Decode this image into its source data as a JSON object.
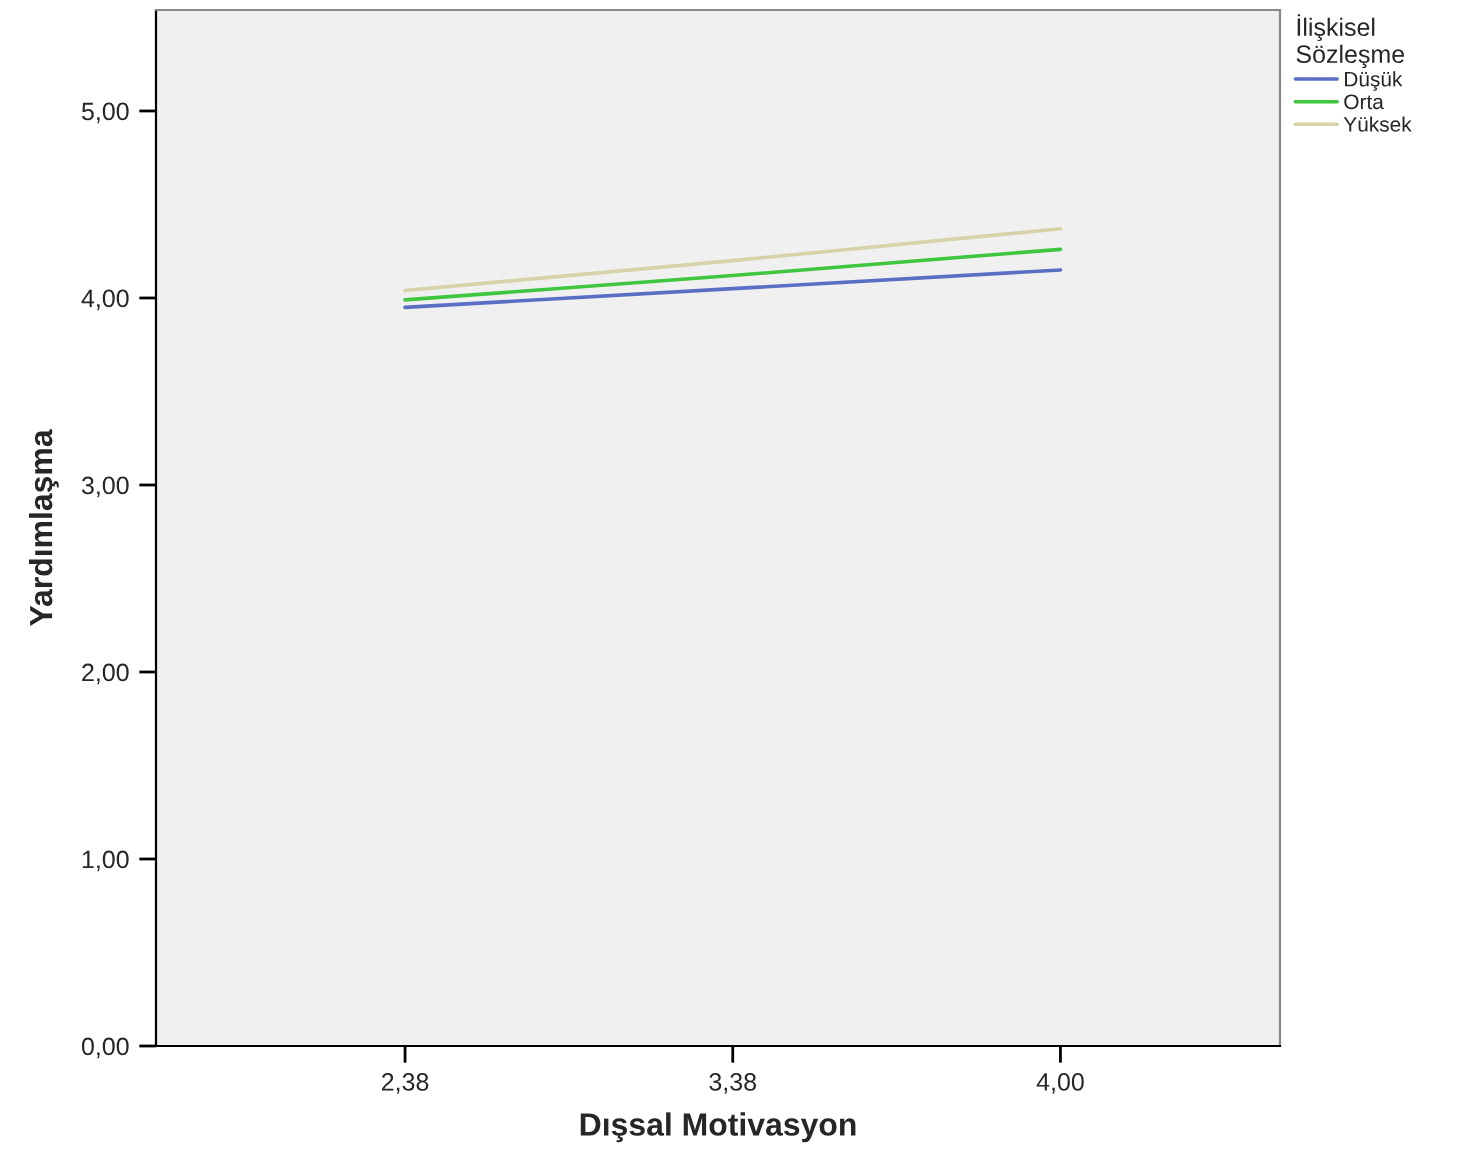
{
  "chart_data": {
    "type": "line",
    "xlabel": "Dışsal Motivasyon",
    "ylabel": "Yardımlaşma",
    "legend_title": "İlişkisel\nSözleşme",
    "categories": [
      "2,38",
      "3,38",
      "4,00"
    ],
    "series": [
      {
        "name": "Düşük",
        "color": "#5a6fc4",
        "values": [
          3.95,
          4.05,
          4.15
        ]
      },
      {
        "name": "Orta",
        "color": "#3ec63e",
        "values": [
          3.99,
          4.12,
          4.26
        ]
      },
      {
        "name": "Yüksek",
        "color": "#d6d3a8",
        "values": [
          4.04,
          4.2,
          4.37
        ]
      }
    ],
    "ylim": [
      0,
      5.54
    ],
    "yticks": [
      {
        "value": 0,
        "label": "0,00"
      },
      {
        "value": 1,
        "label": "1,00"
      },
      {
        "value": 2,
        "label": "2,00"
      },
      {
        "value": 3,
        "label": "3,00"
      },
      {
        "value": 4,
        "label": "4,00"
      },
      {
        "value": 5,
        "label": "5,00"
      }
    ],
    "grid": false,
    "legend": "top right",
    "marker": "none",
    "line_style": "solid"
  }
}
